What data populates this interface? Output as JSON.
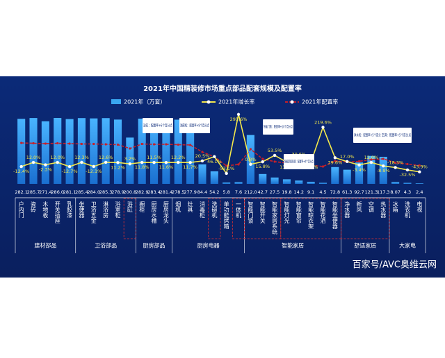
{
  "chart_data": {
    "type": "bar-line",
    "title": "2021年中国精装修市场重点部品配套规模及配置率",
    "categories": [
      "户内门",
      "瓷砖",
      "木地板",
      "开关插座",
      "乳胶漆",
      "坐便器",
      "卫浴五金",
      "淋浴房",
      "浴室柜",
      "浴缸",
      "橱柜",
      "厨房水槽",
      "厨房龙头",
      "烟机",
      "灶具",
      "消毒柜",
      "洗碗机",
      "单功能烤箱",
      "一体机",
      "智能门锁",
      "智能开关",
      "智能家居系统",
      "智能灯光",
      "智能窗帘",
      "智能晾衣架",
      "智能花洒",
      "智能坐便器",
      "净水器",
      "新风",
      "空调",
      "热水器",
      "冰箱",
      "洗衣机",
      "电视"
    ],
    "groups": [
      "建材部品",
      "卫浴部品",
      "厨房部品",
      "厨房电器",
      "智能家居",
      "舒适家居",
      "大家电"
    ],
    "series": [
      {
        "name": "2021年（万套）",
        "color": "#3aa6f0",
        "values": [
          282.1,
          285.7,
          271.4,
          286.0,
          281.1,
          285.4,
          284.0,
          285.3,
          278.9,
          200.8,
          282.9,
          283.4,
          281.4,
          278.5,
          277.9,
          84.4,
          54.2,
          5.8,
          7.6,
          212.0,
          42.7,
          27.5,
          19.8,
          14.2,
          9.1,
          4.5,
          72.8,
          61.3,
          92.7,
          121.3,
          117.3,
          8.07,
          4.3,
          2.4
        ],
        "value_labels": [
          "282.1",
          "285.7",
          "271.4",
          "286.0",
          "281.1",
          "285.4",
          "284.0",
          "285.3",
          "278.9",
          "200.8",
          "282.9",
          "283.4",
          "281.4",
          "278.5",
          "277.9",
          "84.4",
          "54.2",
          "5.8",
          "7.6",
          "212.0",
          "42.7",
          "27.5",
          "19.8",
          "14.2",
          "9.1",
          "4.5",
          "72.8",
          "61.3",
          "92.7",
          "121.3",
          "117.3",
          "8.07",
          "4.3",
          "2.4"
        ]
      },
      {
        "name": "2021年增长率",
        "color": "#f5e94a",
        "values": [
          -12.4,
          12.0,
          -2.3,
          12.0,
          -12.7,
          12.3,
          -12.1,
          12.6,
          11.2,
          3.2,
          11.8,
          11.5,
          11.6,
          12.2,
          11.7,
          20.5,
          46.1,
          -53.1,
          295.6,
          0.8,
          15.8,
          53.5,
          13.1,
          30.6,
          11.9,
          219.6,
          39.6,
          17.0,
          -3.4,
          12.0,
          -8.9,
          -18.3,
          -32.5,
          -43.9
        ],
        "value_labels": [
          "-12.4%",
          "12.0%",
          "-2.3%",
          "12.0%",
          "-12.7%",
          "12.3%",
          "-12.1%",
          "12.6%",
          "11.2%",
          "3.2%",
          "11.8%",
          "11.5%",
          "11.6%",
          "12.2%",
          "11.7%",
          "20.5%",
          "46.1%",
          "-53.1%",
          "295.6%",
          "0.8%",
          "15.8%",
          "53.5%",
          "13.1%",
          "30.6%",
          "11.9%",
          "219.6%",
          "39.6%",
          "17.0%",
          "-3.4%",
          "12.0%",
          "-8.9%",
          "-18.3%",
          "-32.5%",
          "-43.9%"
        ]
      },
      {
        "name": "2021年配置率",
        "color": "#c4202a",
        "values": [
          88,
          87,
          86,
          87,
          86,
          85,
          85,
          84,
          83,
          72,
          85,
          84,
          84,
          83,
          82,
          62,
          48,
          22,
          26,
          70,
          42,
          34,
          30,
          27,
          24,
          20,
          36,
          33,
          35,
          40,
          42,
          31,
          27,
          23
        ]
      }
    ],
    "annotations": [
      "浴缸：配置率+6个百分点",
      "洗碗机：配置率+9个百分点",
      "智能门锁：配置率+10个百分点",
      "智能家居系统：配置率+4个百分点",
      "净水机：配置率+5个百分点",
      "空调：配置率+5个百分点"
    ],
    "watermark": "百家号/AVC奥维云网"
  }
}
